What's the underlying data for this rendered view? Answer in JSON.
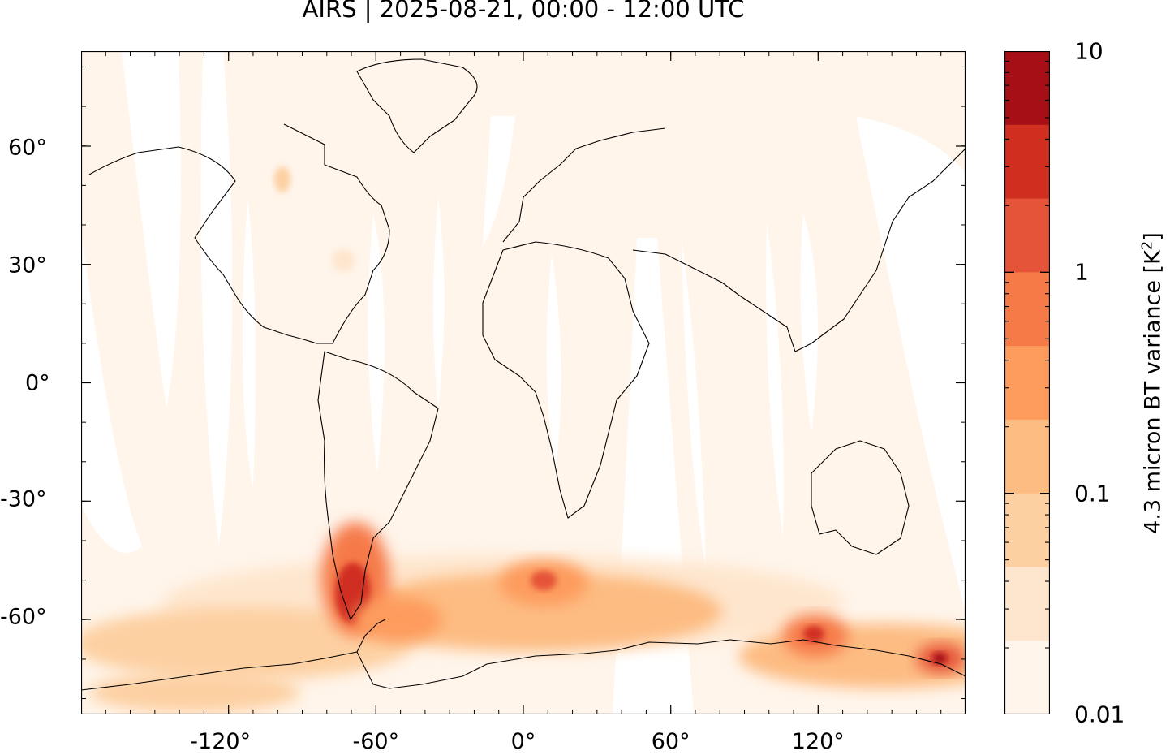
{
  "title": "AIRS | 2025-08-21, 00:00 - 12:00 UTC",
  "map": {
    "projection": "equirectangular",
    "lon_range": [
      -180,
      180
    ],
    "lat_range": [
      -84,
      84
    ],
    "x_ticks": [
      "-120°",
      "-60°",
      "0°",
      "60°",
      "120°"
    ],
    "y_ticks": [
      "60°",
      "30°",
      "0°",
      "-30°",
      "-60°"
    ],
    "background_color": "#fff5eb",
    "gap_color": "#ffffff",
    "coastline_color": "#000000"
  },
  "colorbar": {
    "label": "4.3 micron BT variance [K",
    "label_superscript": "2",
    "label_suffix": "]",
    "scale": "log",
    "range": [
      0.01,
      10
    ],
    "tick_labels": [
      "10",
      "1",
      "0.1",
      "0.01"
    ],
    "colors": [
      "#fff5eb",
      "#fee6ce",
      "#fdd0a2",
      "#fdbc82",
      "#fd9b5d",
      "#f67a48",
      "#e55339",
      "#d02f20",
      "#a50f15"
    ]
  }
}
